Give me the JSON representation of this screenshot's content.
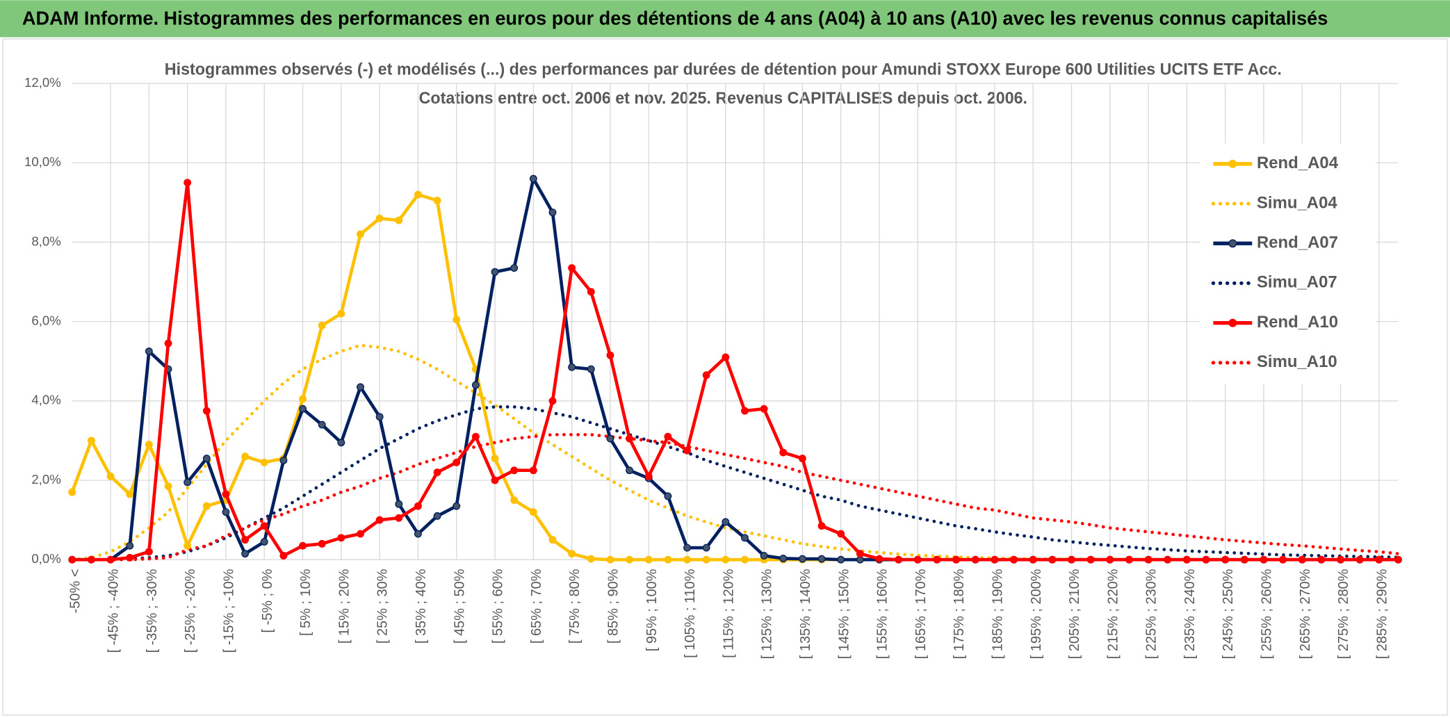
{
  "header": {
    "title": "ADAM Informe. Histogrammes des performances en euros pour des détentions de 4 ans (A04) à 10 ans (A10) avec les revenus connus capitalisés"
  },
  "chart_data": {
    "type": "line",
    "title": "Histogrammes observés (-) et modélisés (...) des performances par durées de détention pour Amundi STOXX Europe 600 Utilities UCITS ETF Acc.",
    "subtitle": "Cotations entre oct. 2006 et nov. 2025. Revenus CAPITALISES depuis oct. 2006.",
    "categories": [
      "-50% <",
      null,
      "[ -45% ; -40%",
      null,
      "[ -35% ; -30%",
      null,
      "[ -25% ; -20%",
      null,
      "[ -15% ; -10%",
      null,
      "[ -5% ; 0%",
      null,
      "[ 5% ; 10%",
      null,
      "[ 15% ; 20%",
      null,
      "[ 25% ; 30%",
      null,
      "[ 35% ; 40%",
      null,
      "[ 45% ; 50%",
      null,
      "[ 55% ; 60%",
      null,
      "[ 65% ; 70%",
      null,
      "[ 75% ; 80%",
      null,
      "[ 85% ; 90%",
      null,
      "[ 95% ; 100%",
      null,
      "[ 105% ; 110%",
      null,
      "[ 115% ; 120%",
      null,
      "[ 125% ; 130%",
      null,
      "[ 135% ; 140%",
      null,
      "[ 145% ; 150%",
      null,
      "[ 155% ; 160%",
      null,
      "[ 165% ; 170%",
      null,
      "[ 175% ; 180%",
      null,
      "[ 185% ; 190%",
      null,
      "[ 195% ; 200%",
      null,
      "[ 205% ; 210%",
      null,
      "[ 215% ; 220%",
      null,
      "[ 225% ; 230%",
      null,
      "[ 235% ; 240%",
      null,
      "[ 245% ; 250%",
      null,
      "[ 255% ; 260%",
      null,
      "[ 265% ; 270%",
      null,
      "[ 275% ; 280%",
      null,
      "[ 285% ; 290%",
      null
    ],
    "series": [
      {
        "name": "Rend_A04",
        "color": "#ffc000",
        "style": "solid",
        "markers": true,
        "values": [
          1.7,
          3.0,
          2.1,
          1.65,
          2.9,
          1.85,
          0.35,
          1.35,
          1.5,
          2.6,
          2.45,
          2.55,
          4.05,
          5.9,
          6.2,
          8.2,
          8.6,
          8.55,
          9.2,
          9.05,
          6.05,
          4.8,
          2.55,
          1.5,
          1.2,
          0.5,
          0.15,
          0.02,
          0,
          0,
          0,
          0,
          0,
          0,
          0,
          0,
          0,
          0,
          0,
          0,
          0,
          0,
          0,
          0,
          0,
          0,
          0,
          0,
          0,
          0,
          0,
          0,
          0,
          0,
          0,
          0,
          0,
          0,
          0,
          0,
          0,
          0,
          0,
          0,
          0,
          0,
          0,
          0,
          0,
          0
        ]
      },
      {
        "name": "Simu_A04",
        "color": "#ffc000",
        "style": "dotted",
        "markers": false,
        "values": [
          0,
          0.05,
          0.2,
          0.45,
          0.8,
          1.2,
          1.8,
          2.4,
          3.0,
          3.5,
          4.0,
          4.45,
          4.8,
          5.05,
          5.25,
          5.4,
          5.35,
          5.25,
          5.05,
          4.8,
          4.5,
          4.2,
          3.9,
          3.55,
          3.2,
          2.9,
          2.6,
          2.3,
          2.0,
          1.75,
          1.5,
          1.3,
          1.1,
          0.95,
          0.8,
          0.7,
          0.6,
          0.5,
          0.4,
          0.33,
          0.27,
          0.22,
          0.18,
          0.14,
          0.11,
          0.09,
          0.07,
          0.05,
          0.04,
          0.03,
          0.02,
          0.02,
          0.01,
          0.01,
          0.01,
          0,
          0,
          0,
          0,
          0,
          0,
          0,
          0,
          0,
          0,
          0,
          0,
          0,
          0,
          0
        ]
      },
      {
        "name": "Rend_A07",
        "color": "#002060",
        "style": "solid",
        "markers": true,
        "values": [
          0,
          0,
          0,
          0.35,
          5.25,
          4.8,
          1.95,
          2.55,
          1.2,
          0.15,
          0.45,
          2.5,
          3.8,
          3.4,
          2.95,
          4.35,
          3.6,
          1.4,
          0.65,
          1.1,
          1.35,
          4.4,
          7.25,
          7.35,
          9.6,
          8.75,
          4.85,
          4.8,
          3.05,
          2.25,
          2.05,
          1.6,
          0.3,
          0.3,
          0.95,
          0.55,
          0.1,
          0.03,
          0.02,
          0.02,
          0,
          0,
          0,
          0,
          0,
          0,
          0,
          0,
          0,
          0,
          0,
          0,
          0,
          0,
          0,
          0,
          0,
          0,
          0,
          0,
          0,
          0,
          0,
          0,
          0,
          0,
          0,
          0,
          0,
          0
        ]
      },
      {
        "name": "Simu_A07",
        "color": "#002060",
        "style": "dotted",
        "markers": false,
        "values": [
          0,
          0,
          0,
          0.02,
          0.05,
          0.1,
          0.2,
          0.35,
          0.55,
          0.8,
          1.05,
          1.3,
          1.6,
          1.9,
          2.2,
          2.5,
          2.8,
          3.05,
          3.3,
          3.5,
          3.65,
          3.8,
          3.85,
          3.85,
          3.8,
          3.7,
          3.6,
          3.45,
          3.3,
          3.15,
          3.0,
          2.85,
          2.7,
          2.5,
          2.35,
          2.2,
          2.05,
          1.9,
          1.75,
          1.6,
          1.5,
          1.35,
          1.25,
          1.15,
          1.05,
          0.95,
          0.85,
          0.78,
          0.7,
          0.63,
          0.57,
          0.5,
          0.45,
          0.4,
          0.36,
          0.32,
          0.28,
          0.25,
          0.22,
          0.2,
          0.18,
          0.16,
          0.14,
          0.12,
          0.11,
          0.1,
          0.09,
          0.08,
          0.07,
          0.06
        ]
      },
      {
        "name": "Rend_A10",
        "color": "#ff0000",
        "style": "solid",
        "markers": true,
        "values": [
          0,
          0,
          0,
          0.05,
          0.2,
          5.45,
          9.5,
          3.75,
          1.65,
          0.5,
          0.85,
          0.1,
          0.35,
          0.4,
          0.55,
          0.65,
          1.0,
          1.05,
          1.35,
          2.2,
          2.45,
          3.1,
          2.0,
          2.25,
          2.25,
          4.0,
          7.35,
          6.75,
          5.15,
          3.05,
          2.1,
          3.1,
          2.75,
          4.65,
          5.1,
          3.75,
          3.8,
          2.7,
          2.55,
          0.85,
          0.65,
          0.15,
          0.02,
          0,
          0,
          0,
          0,
          0,
          0,
          0,
          0,
          0,
          0,
          0,
          0,
          0,
          0,
          0,
          0,
          0,
          0,
          0,
          0,
          0,
          0,
          0,
          0,
          0,
          0,
          0
        ]
      },
      {
        "name": "Simu_A10",
        "color": "#ff0000",
        "style": "dotted",
        "markers": false,
        "values": [
          0,
          0,
          0,
          0,
          0.02,
          0.05,
          0.25,
          0.35,
          0.6,
          0.8,
          1.0,
          1.15,
          1.35,
          1.5,
          1.7,
          1.85,
          2.05,
          2.2,
          2.4,
          2.55,
          2.7,
          2.85,
          2.95,
          3.05,
          3.1,
          3.15,
          3.15,
          3.15,
          3.1,
          3.05,
          3.0,
          2.95,
          2.85,
          2.75,
          2.65,
          2.55,
          2.45,
          2.35,
          2.2,
          2.1,
          2.0,
          1.9,
          1.8,
          1.7,
          1.6,
          1.5,
          1.4,
          1.3,
          1.25,
          1.15,
          1.05,
          1.0,
          0.95,
          0.88,
          0.8,
          0.75,
          0.7,
          0.65,
          0.6,
          0.55,
          0.5,
          0.46,
          0.42,
          0.38,
          0.35,
          0.31,
          0.27,
          0.23,
          0.2,
          0.15
        ]
      }
    ],
    "ylim": [
      0,
      12
    ],
    "yticks": [
      {
        "value": 0,
        "label": "0,0%"
      },
      {
        "value": 2,
        "label": "2,0%"
      },
      {
        "value": 4,
        "label": "4,0%"
      },
      {
        "value": 6,
        "label": "6,0%"
      },
      {
        "value": 8,
        "label": "8,0%"
      },
      {
        "value": 10,
        "label": "10,0%"
      },
      {
        "value": 12,
        "label": "12,0%"
      }
    ],
    "grid": true,
    "legend": "right"
  }
}
